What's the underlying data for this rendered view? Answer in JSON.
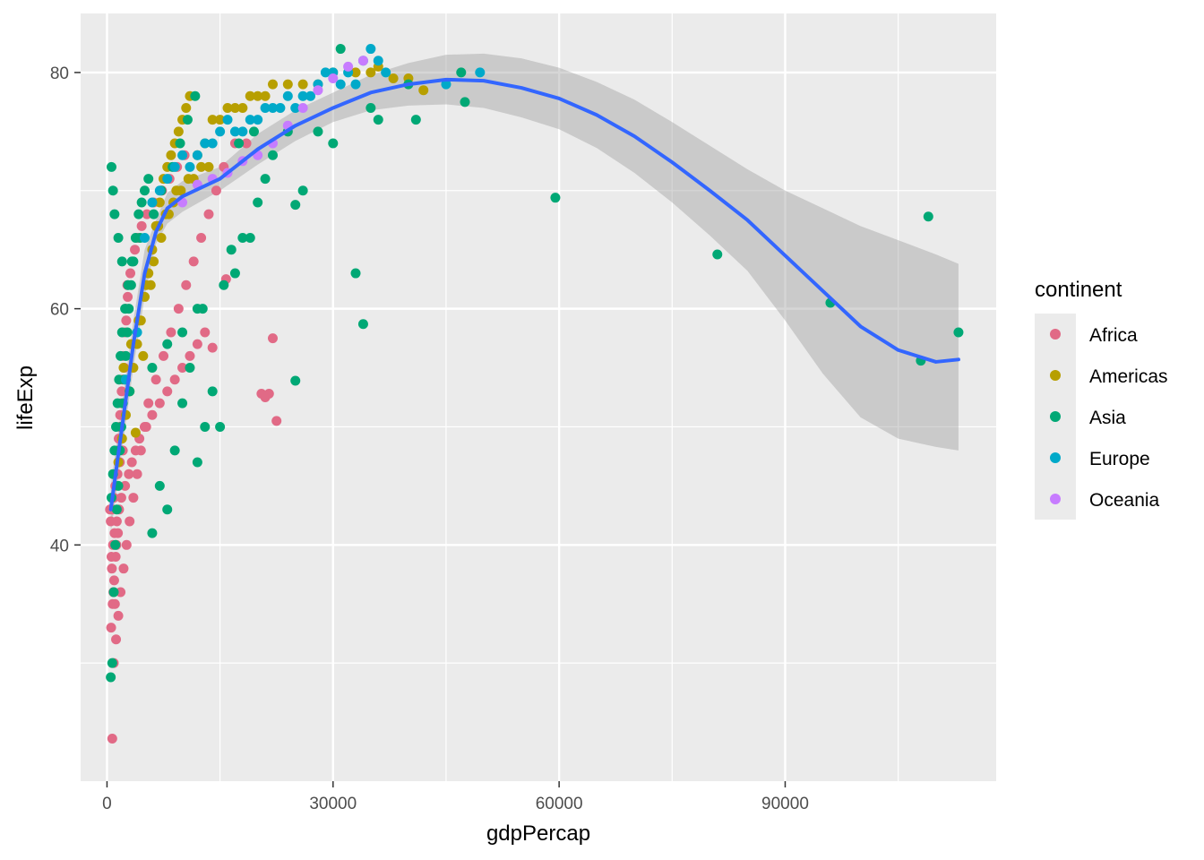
{
  "chart_data": {
    "type": "scatter",
    "xlabel": "gdpPercap",
    "ylabel": "lifeExp",
    "xlim": [
      -3500,
      118000
    ],
    "ylim": [
      20,
      85
    ],
    "x_ticks": [
      0,
      30000,
      60000,
      90000
    ],
    "x_tick_labels": [
      "0",
      "30000",
      "60000",
      "90000"
    ],
    "y_ticks": [
      40,
      60,
      80
    ],
    "y_tick_labels": [
      "40",
      "60",
      "80"
    ],
    "grid": true,
    "legend": {
      "title": "continent",
      "placement": "right",
      "entries": [
        {
          "label": "Africa",
          "color": "#E16A86"
        },
        {
          "label": "Americas",
          "color": "#B79F00"
        },
        {
          "label": "Asia",
          "color": "#00A875"
        },
        {
          "label": "Europe",
          "color": "#00A9C9"
        },
        {
          "label": "Oceania",
          "color": "#C77CFF"
        }
      ]
    },
    "series": [
      {
        "name": "Africa",
        "color": "#E16A86",
        "x": [
          700,
          900,
          1200,
          1500,
          1800,
          2200,
          2600,
          3000,
          3500,
          4000,
          4500,
          5000,
          5500,
          6500,
          7500,
          8500,
          9500,
          10500,
          11500,
          12500,
          13500,
          14500,
          15500,
          17000,
          18500,
          21000,
          22000,
          500,
          700,
          900,
          1100,
          1400,
          1700,
          2100,
          600,
          800,
          1000,
          1300,
          1600,
          1900,
          2400,
          2900,
          3300,
          3800,
          4300,
          5200,
          6000,
          7000,
          8000,
          9000,
          10000,
          11000,
          12000,
          13000,
          400,
          650,
          850,
          1050,
          1250,
          1450,
          1650,
          1850,
          2050,
          2300,
          2500,
          2700,
          550,
          750,
          950,
          1150,
          1350,
          1550,
          1750,
          1950,
          2150,
          2350,
          2550,
          2750,
          3100,
          3400,
          3700,
          4100,
          4600,
          5300,
          6200,
          7300,
          8300,
          9300,
          10300,
          14000,
          15800,
          20500,
          21500,
          22500
        ],
        "y": [
          23.6,
          30,
          32,
          34,
          36,
          38,
          40,
          42,
          44,
          46,
          48,
          50,
          52,
          54,
          56,
          58,
          60,
          62,
          64,
          66,
          68,
          70,
          72,
          74,
          74,
          52.5,
          57.5,
          42,
          43,
          44,
          45,
          46,
          47,
          48,
          39,
          40,
          41,
          42,
          43,
          44,
          45,
          46,
          47,
          48,
          49,
          50,
          51,
          52,
          53,
          54,
          55,
          56,
          57,
          58,
          43,
          38,
          36,
          35,
          40,
          41,
          50,
          52,
          54,
          55,
          60,
          62,
          33,
          35,
          37,
          39,
          48,
          49,
          51,
          53,
          56,
          58,
          59,
          61,
          63,
          64,
          65,
          66,
          67,
          68,
          69,
          70,
          71,
          72,
          73,
          56.7,
          62.5,
          52.8,
          52.8,
          50.5
        ]
      },
      {
        "name": "Americas",
        "color": "#B79F00",
        "x": [
          1500,
          2000,
          2500,
          3000,
          3500,
          4000,
          4500,
          5000,
          5500,
          6000,
          6500,
          7000,
          7500,
          8000,
          8500,
          9000,
          9500,
          10000,
          10500,
          11000,
          12000,
          13000,
          14000,
          15000,
          16000,
          17000,
          18000,
          19000,
          20000,
          21000,
          22000,
          24000,
          26000,
          28000,
          30000,
          33000,
          35000,
          36000,
          38000,
          40000,
          42000,
          2200,
          3200,
          4200,
          5200,
          6200,
          7200,
          8200,
          9200,
          11500,
          12500,
          13500,
          3800,
          4800,
          5800,
          6800,
          7800,
          8800,
          9800,
          10800
        ],
        "y": [
          47,
          49,
          51,
          53,
          55,
          57,
          59,
          61,
          63,
          65,
          67,
          69,
          71,
          72,
          73,
          74,
          75,
          76,
          77,
          78,
          73,
          74,
          76,
          76,
          77,
          77,
          77,
          78,
          78,
          78,
          79,
          79,
          79,
          79,
          80,
          80,
          80,
          80.5,
          79.5,
          79.5,
          78.5,
          55,
          57,
          59,
          62,
          64,
          66,
          68,
          70,
          71,
          72,
          72,
          49.5,
          56,
          62,
          67,
          68,
          69,
          70,
          71
        ]
      },
      {
        "name": "Asia",
        "color": "#00A875",
        "x": [
          500,
          700,
          900,
          1100,
          1300,
          1500,
          1700,
          1900,
          2100,
          2300,
          2500,
          2700,
          2900,
          3200,
          3500,
          3800,
          4200,
          4600,
          5000,
          5500,
          6000,
          7000,
          8000,
          9000,
          10000,
          11000,
          12000,
          13000,
          14000,
          15000,
          17000,
          18000,
          19000,
          20000,
          21000,
          22000,
          24000,
          25000,
          26000,
          28000,
          30000,
          31000,
          33000,
          34000,
          35000,
          36000,
          40000,
          41000,
          47000,
          47500,
          59500,
          81000,
          96000,
          108000,
          109000,
          113000,
          600,
          800,
          1000,
          1200,
          1400,
          1600,
          1800,
          2000,
          2400,
          2800,
          3300,
          4400,
          6200,
          7200,
          8700,
          9700,
          10700,
          11700,
          12700,
          15500,
          16500,
          17500,
          19500,
          25000,
          12000,
          10000,
          8000,
          6000,
          3000,
          2000,
          1500,
          1000,
          800,
          600
        ],
        "y": [
          28.8,
          30,
          36,
          40,
          43,
          45,
          48,
          50,
          52,
          54,
          56,
          58,
          60,
          62,
          64,
          66,
          68,
          69,
          70,
          71,
          41,
          45,
          43,
          48,
          52,
          55,
          47,
          50,
          53,
          50,
          63,
          66,
          66,
          69,
          71,
          73,
          75,
          68.8,
          70,
          75,
          74,
          82,
          63,
          58.7,
          77,
          76,
          79,
          76,
          80,
          77.5,
          69.4,
          64.6,
          60.5,
          55.6,
          67.8,
          58,
          44,
          46,
          48,
          50,
          52,
          54,
          56,
          58,
          60,
          62,
          64,
          66,
          68,
          70,
          72,
          74,
          76,
          78,
          60,
          62,
          65,
          74,
          75,
          53.9,
          60,
          58,
          57,
          55,
          53,
          64,
          66,
          68,
          70,
          72
        ]
      },
      {
        "name": "Europe",
        "color": "#00A9C9",
        "x": [
          2500,
          4000,
          5000,
          6000,
          7000,
          8000,
          9000,
          10000,
          11000,
          12000,
          13000,
          14000,
          15000,
          16000,
          17000,
          18000,
          19000,
          20000,
          21000,
          22000,
          23000,
          24000,
          25000,
          26000,
          27000,
          28000,
          29000,
          30000,
          31000,
          32000,
          33000,
          34000,
          35000,
          36000,
          37000,
          45000,
          49500
        ],
        "y": [
          54,
          58,
          66,
          69,
          70,
          71,
          72,
          73,
          72,
          73,
          74,
          74,
          75,
          76,
          75,
          75,
          76,
          76,
          77,
          77,
          77,
          78,
          77,
          78,
          78,
          79,
          80,
          80,
          79,
          80,
          79,
          81,
          82,
          81,
          80,
          79,
          80
        ]
      },
      {
        "name": "Oceania",
        "color": "#C77CFF",
        "x": [
          10000,
          12000,
          14000,
          16000,
          18000,
          20000,
          22000,
          24000,
          26000,
          28000,
          30000,
          32000,
          34000
        ],
        "y": [
          69,
          70.5,
          71,
          71.5,
          72.5,
          73,
          74,
          75.5,
          77,
          78.5,
          79.5,
          80.5,
          81
        ]
      }
    ],
    "smooth": {
      "color": "#3366FF",
      "x": [
        500,
        2000,
        3500,
        5000,
        6500,
        8000,
        10000,
        15000,
        20000,
        25000,
        30000,
        35000,
        40000,
        45000,
        50000,
        55000,
        60000,
        65000,
        70000,
        75000,
        80000,
        85000,
        90000,
        95000,
        100000,
        105000,
        110000,
        113000
      ],
      "y": [
        43,
        50,
        57,
        63,
        66.5,
        68.5,
        69.5,
        71,
        73.5,
        75.5,
        77,
        78.3,
        79,
        79.4,
        79.3,
        78.7,
        77.8,
        76.4,
        74.6,
        72.4,
        70,
        67.5,
        64.5,
        61.5,
        58.5,
        56.5,
        55.5,
        55.7
      ],
      "ci_upper": [
        45,
        52,
        59,
        65,
        67.5,
        69.8,
        70.8,
        72,
        74.8,
        76.8,
        78.3,
        79.8,
        80.8,
        81.5,
        81.6,
        81.2,
        80.4,
        79.2,
        77.7,
        75.8,
        73.8,
        71.8,
        70,
        68.5,
        67,
        65.8,
        64.6,
        63.8
      ],
      "ci_lower": [
        41,
        48,
        55,
        61,
        65.5,
        67.2,
        68.2,
        70,
        72.2,
        74.2,
        75.8,
        76.8,
        77.2,
        77.3,
        77,
        76.2,
        75.2,
        73.6,
        71.5,
        69,
        66.2,
        63.2,
        59,
        54.5,
        50.8,
        49,
        48.3,
        48
      ]
    }
  }
}
